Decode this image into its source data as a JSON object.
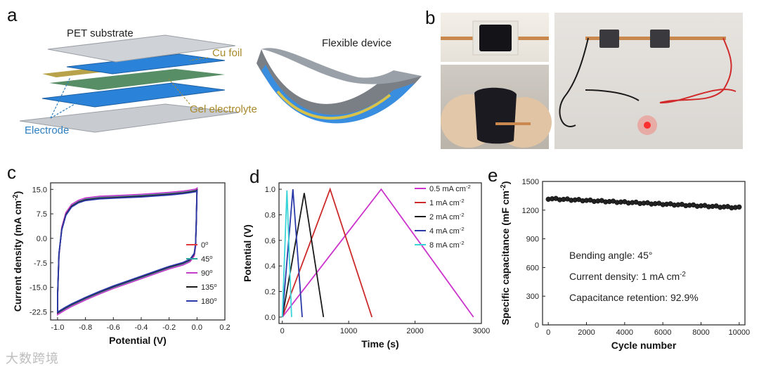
{
  "panels": {
    "a": {
      "letter": "a",
      "labels": {
        "pet": "PET substrate",
        "cu": "Cu foil",
        "gel": "Gel electrolyte",
        "electrode": "Electrode",
        "flexible": "Flexible device"
      },
      "colors": {
        "electrode": "#2b83d9",
        "cu": "#b8a24a",
        "pet": "#cfd2d6",
        "label_blue": "#2e7fc1",
        "label_gold": "#a8892b"
      }
    },
    "b": {
      "letter": "b"
    },
    "c": {
      "letter": "c"
    },
    "d": {
      "letter": "d"
    },
    "e": {
      "letter": "e",
      "annotations": {
        "line1": "Bending angle: 45°",
        "line2": "Current density: 1 mA cm",
        "line2_sup": "-2",
        "line3": "Capacitance retention: 92.9%"
      }
    }
  },
  "chart_data": [
    {
      "id": "c",
      "type": "line",
      "xlabel": "Potential (V)",
      "ylabel": "Current density (mA cm",
      "ylabel_sup": "-2",
      "ylabel_end": ")",
      "xlim": [
        -1.05,
        0.2
      ],
      "ylim": [
        -25,
        17
      ],
      "xticks": [
        -1.0,
        -0.8,
        -0.6,
        -0.4,
        -0.2,
        0.0,
        0.2
      ],
      "xtick_labels": [
        "-1.0",
        "-0.8",
        "-0.6",
        "-0.4",
        "-0.2",
        "0.0",
        "0.2"
      ],
      "yticks": [
        15.0,
        7.5,
        0.0,
        -7.5,
        -15.0,
        -22.5
      ],
      "ytick_labels": [
        "15.0",
        "7.5",
        "0.0",
        "-7.5",
        "-15.0",
        "-22.5"
      ],
      "legend_position": "bottom-right",
      "series": [
        {
          "name": "0",
          "name_sup": "o",
          "color": "#e03a3a",
          "offset": 0.0
        },
        {
          "name": "45",
          "name_sup": "o",
          "color": "#2aa5a0",
          "offset": 0.3
        },
        {
          "name": "90",
          "name_sup": "o",
          "color": "#c33dc8",
          "offset": 0.6
        },
        {
          "name": "135",
          "name_sup": "o",
          "color": "#1a1a1a",
          "offset": -0.4
        },
        {
          "name": "180",
          "name_sup": "o",
          "color": "#2b3aa8",
          "offset": -0.7
        }
      ],
      "upper": [
        [
          -1.0,
          -18
        ],
        [
          -0.99,
          -5
        ],
        [
          -0.97,
          3
        ],
        [
          -0.94,
          7.5
        ],
        [
          -0.9,
          10
        ],
        [
          -0.85,
          11.3
        ],
        [
          -0.8,
          12
        ],
        [
          -0.7,
          12.5
        ],
        [
          -0.6,
          12.7
        ],
        [
          -0.5,
          12.9
        ],
        [
          -0.4,
          13.1
        ],
        [
          -0.3,
          13.4
        ],
        [
          -0.2,
          13.7
        ],
        [
          -0.1,
          14.1
        ],
        [
          -0.05,
          14.4
        ],
        [
          -0.01,
          14.7
        ]
      ],
      "lower": [
        [
          0.0,
          15
        ],
        [
          -0.005,
          5
        ],
        [
          -0.01,
          -2
        ],
        [
          -0.02,
          -5
        ],
        [
          -0.05,
          -6.8
        ],
        [
          -0.1,
          -7.8
        ],
        [
          -0.2,
          -9
        ],
        [
          -0.3,
          -10.5
        ],
        [
          -0.4,
          -12
        ],
        [
          -0.5,
          -13.5
        ],
        [
          -0.6,
          -15
        ],
        [
          -0.7,
          -16.7
        ],
        [
          -0.8,
          -18.5
        ],
        [
          -0.9,
          -20.5
        ],
        [
          -0.95,
          -21.7
        ],
        [
          -1.0,
          -23
        ]
      ]
    },
    {
      "id": "d",
      "type": "line",
      "xlabel": "Time (s)",
      "ylabel": "Potential (V)",
      "xlim": [
        -50,
        3000
      ],
      "ylim": [
        -0.05,
        1.05
      ],
      "xticks": [
        0,
        1000,
        2000,
        3000
      ],
      "xtick_labels": [
        "0",
        "1000",
        "2000",
        "3000"
      ],
      "yticks": [
        0.0,
        0.2,
        0.4,
        0.6,
        0.8,
        1.0
      ],
      "ytick_labels": [
        "0.0",
        "0.2",
        "0.4",
        "0.6",
        "0.8",
        "1.0"
      ],
      "legend_position": "top-right",
      "series": [
        {
          "name": "0.5 mA cm",
          "name_sup": "-2",
          "color": "#cc33cc",
          "x": [
            0,
            1490,
            2880
          ],
          "y": [
            0,
            1.0,
            0
          ]
        },
        {
          "name": "1 mA cm",
          "name_sup": "-2",
          "color": "#cc2a2a",
          "x": [
            0,
            720,
            1350
          ],
          "y": [
            0,
            1.0,
            0
          ]
        },
        {
          "name": "2 mA cm",
          "name_sup": "-2",
          "color": "#1a1a1a",
          "x": [
            0,
            330,
            620
          ],
          "y": [
            0,
            0.97,
            0
          ]
        },
        {
          "name": "4 mA cm",
          "name_sup": "-2",
          "color": "#2b3aa8",
          "x": [
            0,
            160,
            300
          ],
          "y": [
            0,
            1.0,
            0
          ]
        },
        {
          "name": "8 mA cm",
          "name_sup": "-2",
          "color": "#38d4d8",
          "x": [
            0,
            70,
            140
          ],
          "y": [
            0,
            0.99,
            0
          ]
        }
      ]
    },
    {
      "id": "e",
      "type": "scatter",
      "xlabel": "Cycle number",
      "ylabel": "Specific capacitance (mF cm",
      "ylabel_sup": "-2",
      "ylabel_end": ")",
      "xlim": [
        -300,
        10300
      ],
      "ylim": [
        0,
        1500
      ],
      "xticks": [
        0,
        2000,
        4000,
        6000,
        8000,
        10000
      ],
      "xtick_labels": [
        "0",
        "2000",
        "4000",
        "6000",
        "8000",
        "10000"
      ],
      "yticks": [
        0,
        300,
        600,
        900,
        1200,
        1500
      ],
      "ytick_labels": [
        "0",
        "300",
        "600",
        "900",
        "1200",
        "1500"
      ],
      "series": [
        {
          "name": "",
          "color": "#222222",
          "start": 1320,
          "end": 1226,
          "count": 51
        }
      ]
    }
  ],
  "watermark": "大数跨境"
}
